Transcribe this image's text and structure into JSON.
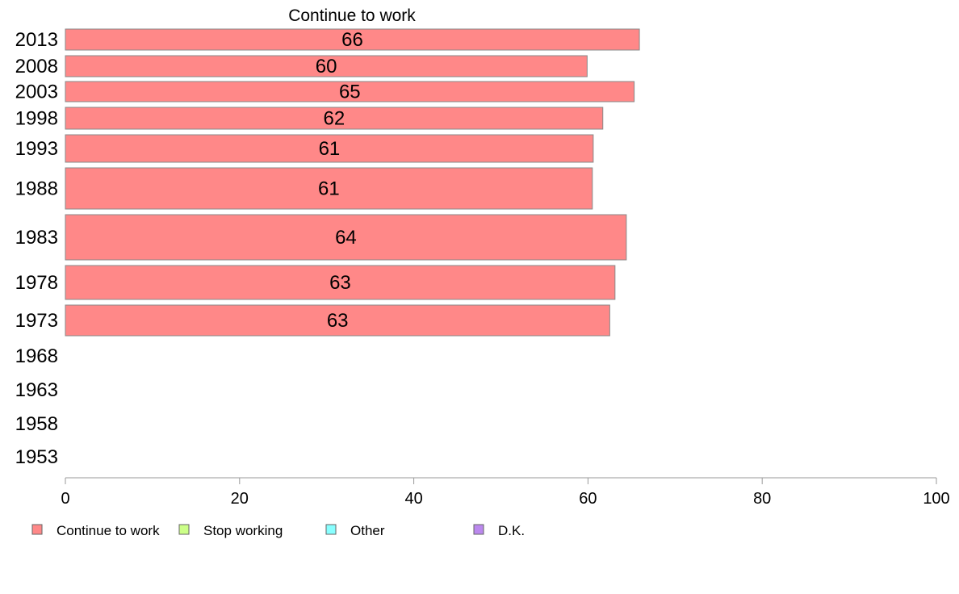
{
  "chart_data": {
    "type": "bar",
    "orientation": "horizontal",
    "title": "Continue to work",
    "categories": [
      "2013",
      "2008",
      "2003",
      "1998",
      "1993",
      "1988",
      "1983",
      "1978",
      "1973",
      "1968",
      "1963",
      "1958",
      "1953"
    ],
    "series": [
      {
        "name": "Continue to work",
        "color": "#ff8888",
        "values": [
          66,
          60,
          65,
          62,
          61,
          61,
          64,
          63,
          63,
          null,
          null,
          null,
          null
        ],
        "exact_values": [
          65.9,
          59.9,
          65.3,
          61.7,
          60.6,
          60.5,
          64.4,
          63.1,
          62.5,
          null,
          null,
          null,
          null
        ],
        "labels": [
          "66",
          "60",
          "65",
          "62",
          "61",
          "61",
          "64",
          "63",
          "63",
          "",
          "",
          "",
          ""
        ]
      }
    ],
    "xlim": [
      0,
      100
    ],
    "xticks": [
      "0",
      "20",
      "40",
      "60",
      "80",
      "100"
    ],
    "grid": false,
    "legend": {
      "placement": "bottom-left",
      "entries": [
        {
          "label": "Continue to work",
          "color": "#ff8888"
        },
        {
          "label": "Stop working",
          "color": "#ccff88"
        },
        {
          "label": "Other",
          "color": "#88ffff"
        },
        {
          "label": "D.K.",
          "color": "#bb88ee"
        }
      ]
    }
  }
}
